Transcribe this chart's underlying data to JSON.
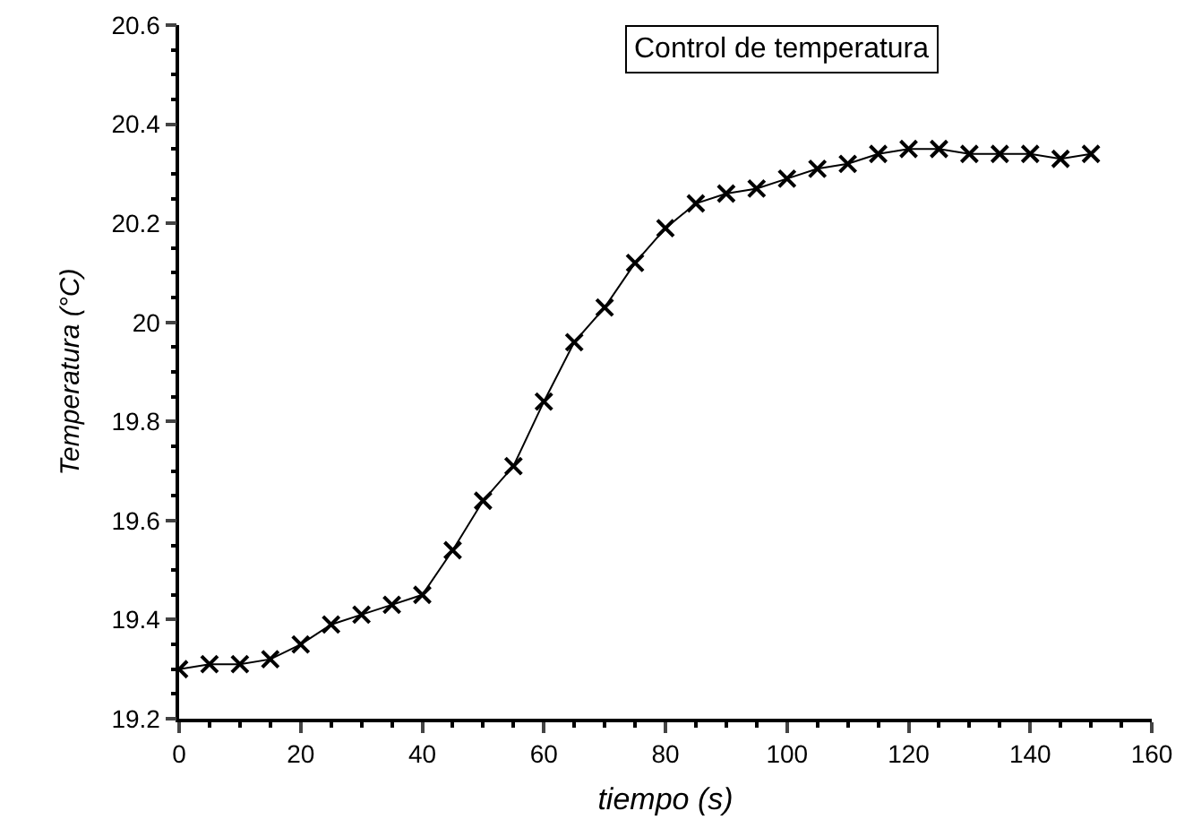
{
  "chart_data": {
    "type": "line",
    "title": "Control de temperatura",
    "xlabel": "tiempo (s)",
    "ylabel": "Temperatura (°C)",
    "x": [
      0,
      5,
      10,
      15,
      20,
      25,
      30,
      35,
      40,
      45,
      50,
      55,
      60,
      65,
      70,
      75,
      80,
      85,
      90,
      95,
      100,
      105,
      110,
      115,
      120,
      125,
      130,
      135,
      140,
      145,
      150
    ],
    "series": [
      {
        "color": "#000000",
        "values": [
          19.3,
          19.31,
          19.31,
          19.32,
          19.35,
          19.39,
          19.41,
          19.43,
          19.45,
          19.54,
          19.64,
          19.71,
          19.84,
          19.96,
          20.03,
          20.12,
          20.19,
          20.24,
          20.26,
          20.27,
          20.29,
          20.31,
          20.32,
          20.34,
          20.35,
          20.35,
          20.34,
          20.34,
          20.34,
          20.33,
          20.34
        ]
      }
    ],
    "xlim": [
      0,
      160
    ],
    "xticks": [
      0,
      20,
      40,
      60,
      80,
      100,
      120,
      140,
      160
    ],
    "ylim": [
      19.2,
      20.6
    ],
    "yticks": [
      19.2,
      19.4,
      19.6,
      19.8,
      20.0,
      20.2,
      20.4,
      20.6
    ],
    "grid": false,
    "legend": false,
    "marker": "cross",
    "line_style": "solid"
  }
}
